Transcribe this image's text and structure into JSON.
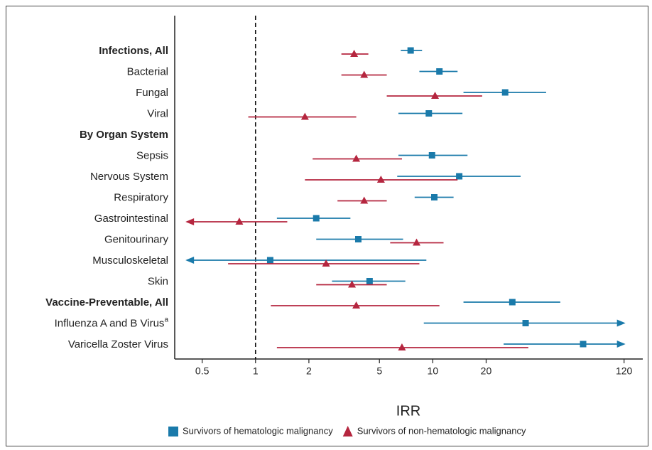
{
  "chart_data": {
    "type": "forest",
    "x_label": "IRR",
    "x_scale": "log",
    "xlim": [
      0.35,
      153
    ],
    "xticks": [
      0.5,
      1,
      2,
      5,
      10,
      20,
      120
    ],
    "reference_line": 1,
    "categories": [
      "Infections, All",
      "Bacterial",
      "Fungal",
      "Viral",
      "By Organ System",
      "Sepsis",
      "Nervous System",
      "Respiratory",
      "Gastrointestinal",
      "Genitourinary",
      "Musculoskeletal",
      "Skin",
      "Vaccine-Preventable, All",
      "Influenza A and B Virus",
      "Varicella Zoster Virus"
    ],
    "category_bold": [
      true,
      false,
      false,
      false,
      true,
      false,
      false,
      false,
      false,
      false,
      false,
      false,
      true,
      false,
      false
    ],
    "category_superscripts": [
      null,
      null,
      null,
      null,
      null,
      null,
      null,
      null,
      null,
      null,
      null,
      null,
      null,
      "a",
      null
    ],
    "series": [
      {
        "name": "Survivors of hematologic malignancy",
        "color": "#1a7aaa",
        "marker": "square",
        "values": [
          7.5,
          10.9,
          25.6,
          9.5,
          null,
          9.9,
          14.1,
          10.2,
          2.2,
          3.8,
          1.21,
          4.4,
          28.1,
          33.4,
          70.5
        ],
        "lower": [
          6.6,
          8.4,
          14.9,
          6.4,
          null,
          6.4,
          6.3,
          7.9,
          1.32,
          2.2,
          0.41,
          2.7,
          14.9,
          8.9,
          25.1
        ],
        "upper": [
          8.7,
          13.8,
          43.6,
          14.7,
          null,
          15.7,
          31.3,
          13.1,
          3.43,
          6.8,
          9.2,
          7.0,
          52.4,
          120,
          120
        ],
        "arrows": [
          null,
          null,
          null,
          null,
          null,
          null,
          null,
          null,
          null,
          null,
          "left",
          null,
          null,
          "right",
          "right"
        ]
      },
      {
        "name": "Survivors of non-hematologic malignancy",
        "color": "#b5263f",
        "marker": "triangle",
        "values": [
          3.6,
          4.1,
          10.3,
          1.9,
          null,
          3.7,
          5.1,
          4.1,
          0.81,
          8.1,
          2.5,
          3.5,
          3.7,
          null,
          6.7
        ],
        "lower": [
          3.05,
          3.05,
          5.5,
          0.91,
          null,
          2.1,
          1.9,
          2.9,
          0.41,
          5.75,
          0.7,
          2.2,
          1.22,
          null,
          1.32
        ],
        "upper": [
          4.33,
          5.5,
          19.0,
          3.7,
          null,
          6.7,
          13.8,
          5.5,
          1.51,
          11.5,
          8.4,
          5.5,
          10.9,
          null,
          34.6
        ],
        "arrows": [
          null,
          null,
          null,
          null,
          null,
          null,
          null,
          null,
          "left",
          null,
          null,
          null,
          null,
          null,
          null
        ]
      }
    ]
  }
}
